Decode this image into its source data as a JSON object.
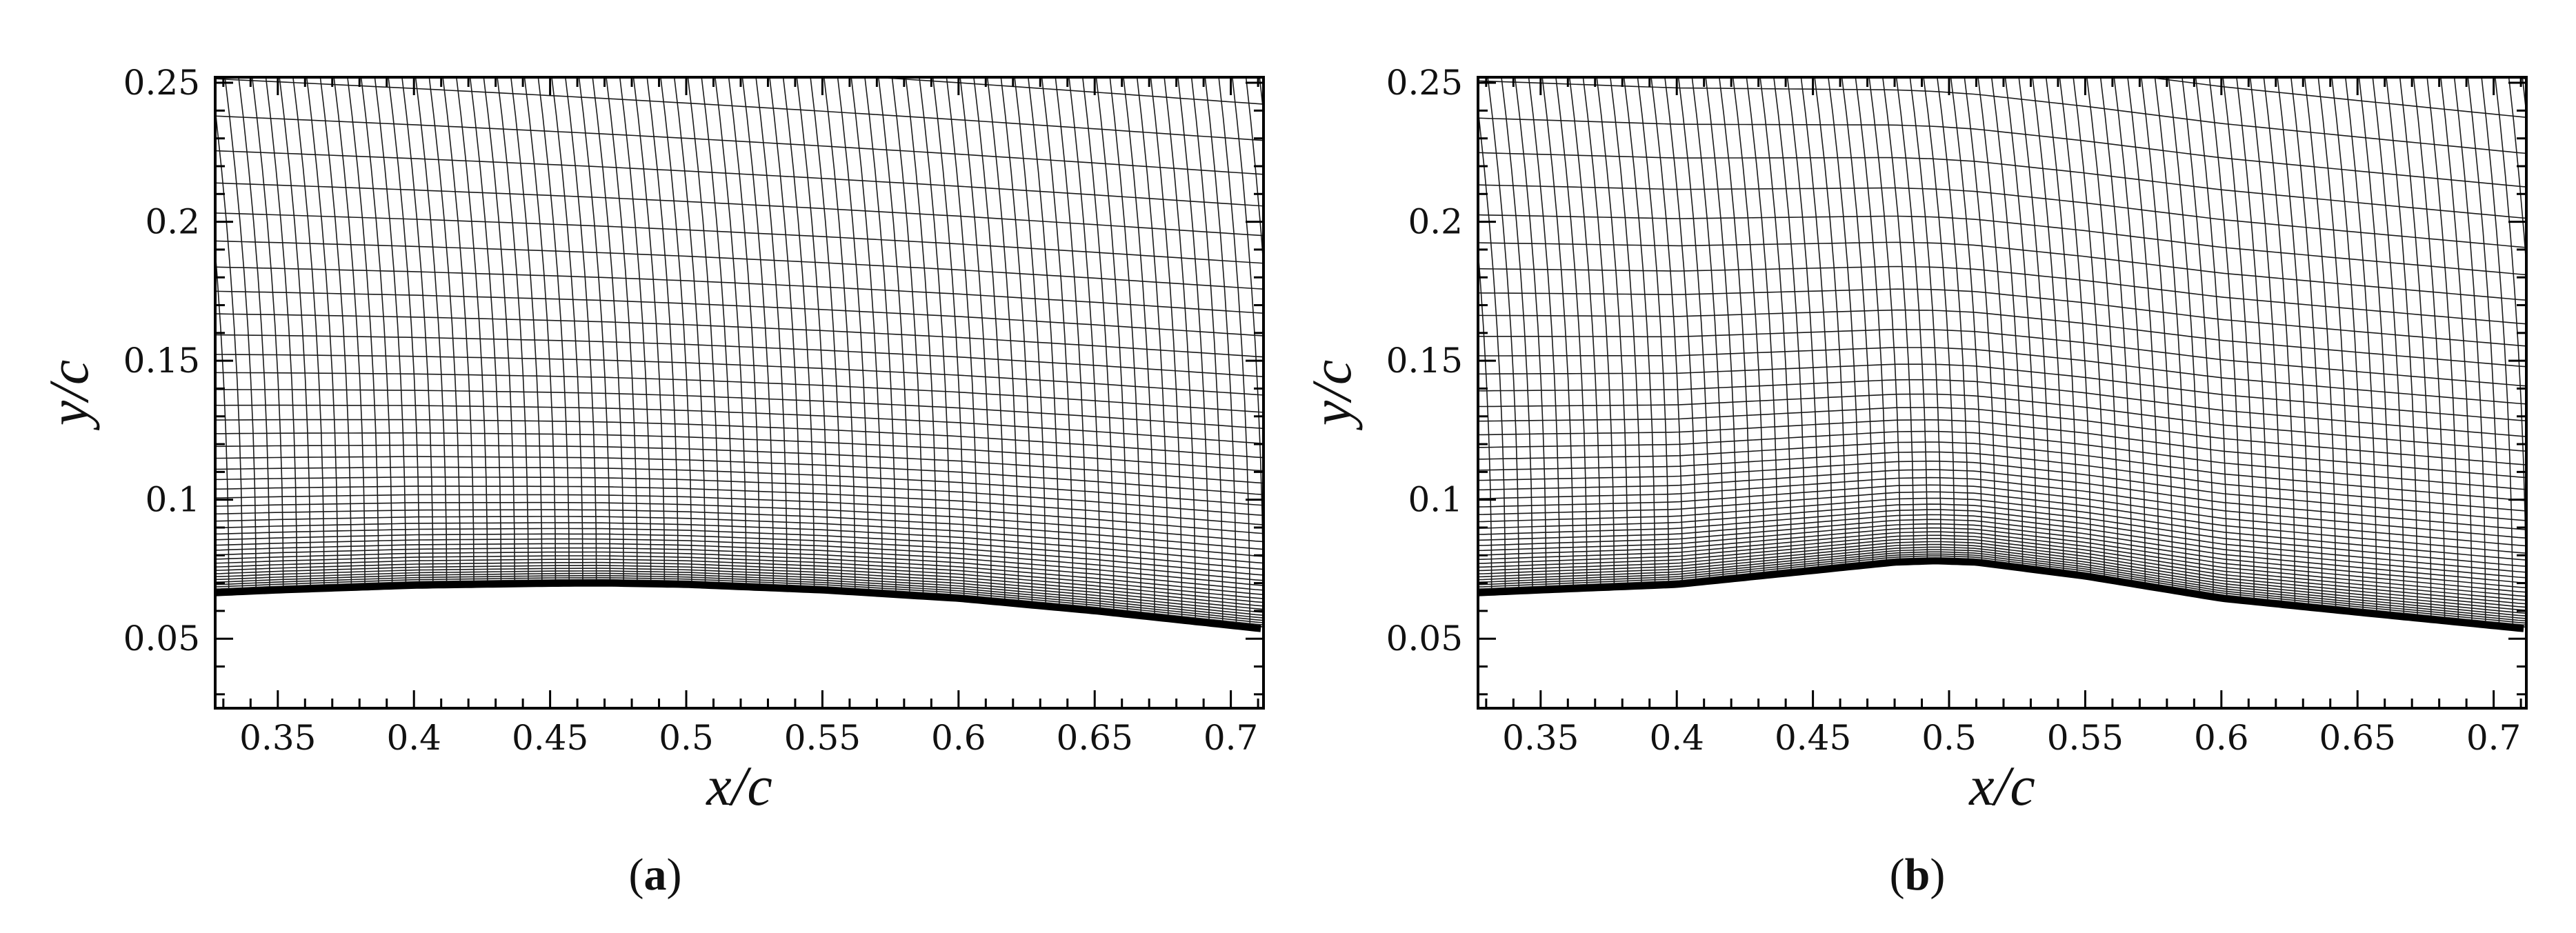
{
  "chart_data": [
    {
      "type": "line",
      "panel": "a",
      "caption": {
        "open": "(",
        "letter": "a",
        "close": ")"
      },
      "xlabel": "x/c",
      "ylabel": "y/c",
      "xlim": [
        0.327,
        0.712
      ],
      "ylim": [
        0.025,
        0.252
      ],
      "xticks": [
        0.35,
        0.4,
        0.45,
        0.5,
        0.55,
        0.6,
        0.65,
        0.7
      ],
      "xtick_labels": [
        "0.35",
        "0.4",
        "0.45",
        "0.5",
        "0.55",
        "0.6",
        "0.65",
        "0.7"
      ],
      "yticks": [
        0.05,
        0.1,
        0.15,
        0.2,
        0.25
      ],
      "ytick_labels": [
        "0.05",
        "0.1",
        "0.15",
        "0.2",
        "0.25"
      ],
      "grid": false,
      "series": [
        {
          "role": "wall",
          "x": [
            0.327,
            0.35,
            0.4,
            0.45,
            0.47,
            0.5,
            0.55,
            0.6,
            0.65,
            0.712
          ],
          "y": [
            0.0665,
            0.0675,
            0.0692,
            0.0699,
            0.07,
            0.0695,
            0.0675,
            0.0645,
            0.06,
            0.0535
          ]
        }
      ],
      "mesh_spacing": {
        "streamwise_delta_x": 0.005
      }
    },
    {
      "type": "line",
      "panel": "b",
      "caption": {
        "open": "(",
        "letter": "b",
        "close": ")"
      },
      "xlabel": "x/c",
      "ylabel": "y/c",
      "xlim": [
        0.327,
        0.712
      ],
      "ylim": [
        0.025,
        0.252
      ],
      "xticks": [
        0.35,
        0.4,
        0.45,
        0.5,
        0.55,
        0.6,
        0.65,
        0.7
      ],
      "xtick_labels": [
        "0.35",
        "0.4",
        "0.45",
        "0.5",
        "0.55",
        "0.6",
        "0.65",
        "0.7"
      ],
      "yticks": [
        0.05,
        0.1,
        0.15,
        0.2,
        0.25
      ],
      "ytick_labels": [
        "0.05",
        "0.1",
        "0.15",
        "0.2",
        "0.25"
      ],
      "grid": false,
      "series": [
        {
          "role": "wall",
          "x": [
            0.327,
            0.35,
            0.4,
            0.45,
            0.48,
            0.495,
            0.51,
            0.55,
            0.6,
            0.65,
            0.712
          ],
          "y": [
            0.0665,
            0.0675,
            0.0695,
            0.0745,
            0.0775,
            0.078,
            0.0775,
            0.0725,
            0.0645,
            0.0595,
            0.0535
          ]
        }
      ],
      "mesh_spacing": {
        "streamwise_delta_x": 0.005
      }
    }
  ]
}
